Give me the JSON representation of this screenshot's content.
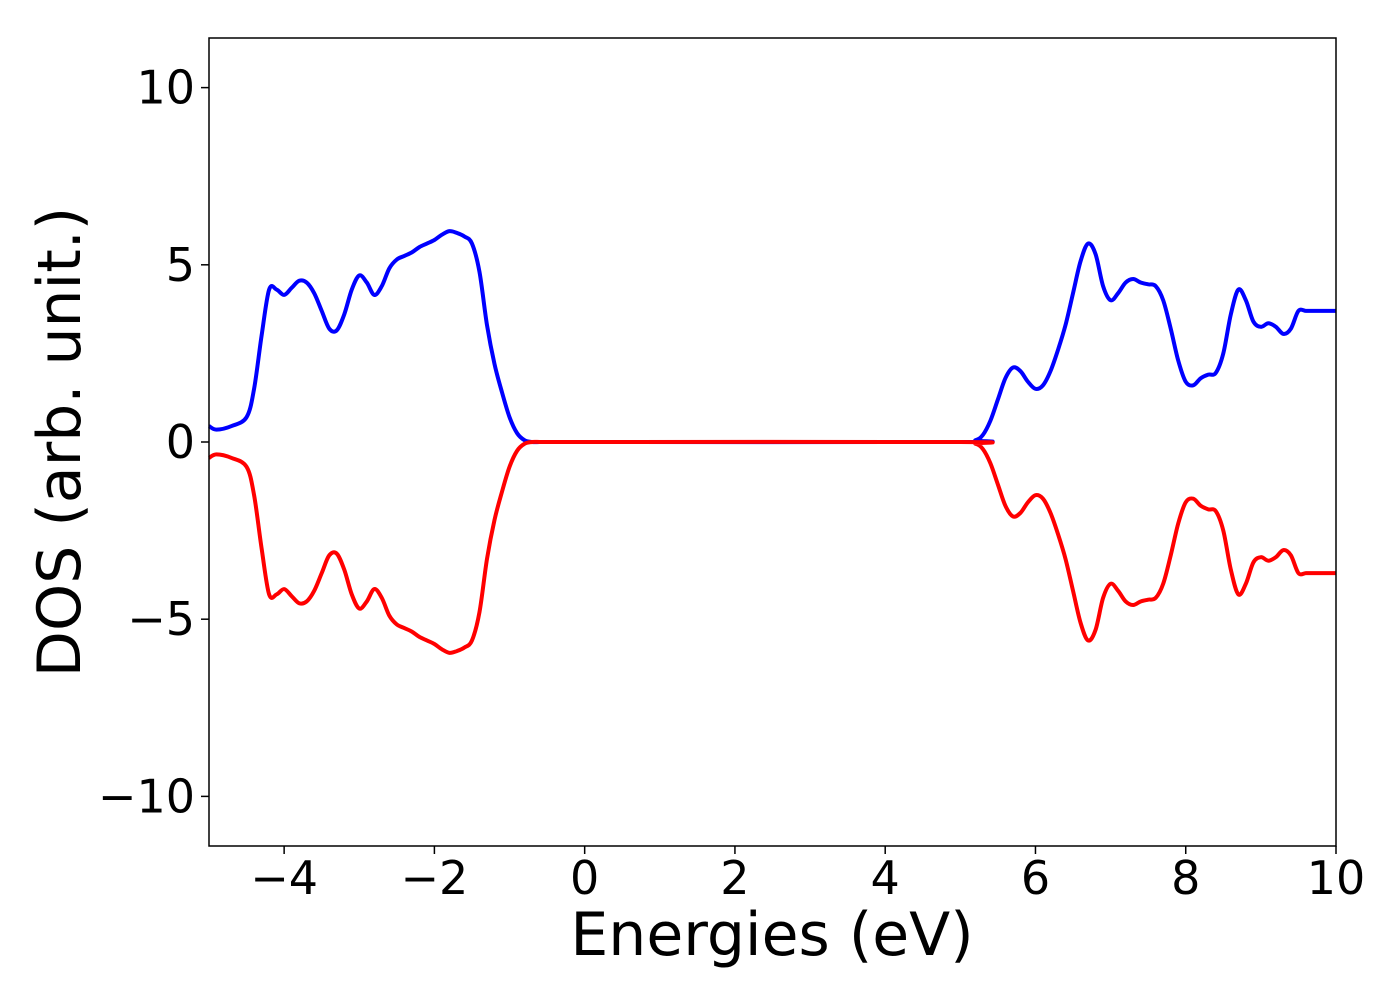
{
  "chart_data": {
    "type": "line",
    "title": "",
    "xlabel": "Energies (eV)",
    "ylabel": "DOS (arb. unit.)",
    "xlim": [
      -5,
      10
    ],
    "ylim": [
      -11.4,
      11.4
    ],
    "grid": false,
    "xticks": [
      -4,
      -2,
      0,
      2,
      4,
      6,
      8,
      10
    ],
    "xtick_labels": [
      "−4",
      "−2",
      "0",
      "2",
      "4",
      "6",
      "8",
      "10"
    ],
    "yticks": [
      10,
      5,
      0,
      -5,
      -10
    ],
    "ytick_labels": [
      "10",
      "5",
      "0",
      "−5",
      "−10"
    ],
    "series": [
      {
        "color": "#0000ff",
        "x": [
          -5.0,
          -4.9,
          -4.7,
          -4.5,
          -4.4,
          -4.3,
          -4.2,
          -4.1,
          -4.0,
          -3.9,
          -3.8,
          -3.7,
          -3.6,
          -3.5,
          -3.4,
          -3.3,
          -3.2,
          -3.1,
          -3.0,
          -2.9,
          -2.8,
          -2.7,
          -2.6,
          -2.5,
          -2.4,
          -2.3,
          -2.2,
          -2.1,
          -2.0,
          -1.9,
          -1.8,
          -1.7,
          -1.6,
          -1.5,
          -1.4,
          -1.3,
          -1.2,
          -1.1,
          -1.0,
          -0.9,
          -0.8,
          -0.7,
          -0.6,
          -0.5,
          0.0,
          5.0,
          5.2,
          5.3,
          5.4,
          5.5,
          5.6,
          5.7,
          5.8,
          5.9,
          6.0,
          6.1,
          6.2,
          6.3,
          6.4,
          6.5,
          6.6,
          6.7,
          6.8,
          6.9,
          7.0,
          7.1,
          7.2,
          7.3,
          7.4,
          7.5,
          7.6,
          7.7,
          7.8,
          7.9,
          8.0,
          8.1,
          8.2,
          8.3,
          8.4,
          8.5,
          8.6,
          8.7,
          8.8,
          8.9,
          9.0,
          9.1,
          9.2,
          9.3,
          9.4,
          9.5,
          9.6,
          9.7,
          9.8,
          9.9,
          10.0
        ],
        "y": [
          0.45,
          0.35,
          0.45,
          0.7,
          1.5,
          3.0,
          4.3,
          4.3,
          4.15,
          4.35,
          4.55,
          4.5,
          4.2,
          3.7,
          3.2,
          3.15,
          3.6,
          4.3,
          4.7,
          4.5,
          4.15,
          4.4,
          4.9,
          5.15,
          5.25,
          5.35,
          5.5,
          5.6,
          5.7,
          5.85,
          5.95,
          5.9,
          5.8,
          5.6,
          4.8,
          3.3,
          2.2,
          1.4,
          0.7,
          0.25,
          0.05,
          0.0,
          0.0,
          0.0,
          0.0,
          0.0,
          0.05,
          0.2,
          0.6,
          1.2,
          1.8,
          2.1,
          2.0,
          1.7,
          1.5,
          1.6,
          2.0,
          2.6,
          3.3,
          4.2,
          5.1,
          5.6,
          5.3,
          4.4,
          4.0,
          4.2,
          4.5,
          4.6,
          4.5,
          4.45,
          4.4,
          4.0,
          3.2,
          2.3,
          1.7,
          1.6,
          1.8,
          1.9,
          1.95,
          2.5,
          3.6,
          4.3,
          4.0,
          3.4,
          3.25,
          3.35,
          3.25,
          3.05,
          3.2,
          3.7,
          3.7,
          3.7,
          3.7,
          3.7,
          3.7
        ]
      },
      {
        "color": "#ff0000",
        "x": [
          -5.0,
          -4.9,
          -4.7,
          -4.5,
          -4.4,
          -4.3,
          -4.2,
          -4.1,
          -4.0,
          -3.9,
          -3.8,
          -3.7,
          -3.6,
          -3.5,
          -3.4,
          -3.3,
          -3.2,
          -3.1,
          -3.0,
          -2.9,
          -2.8,
          -2.7,
          -2.6,
          -2.5,
          -2.4,
          -2.3,
          -2.2,
          -2.1,
          -2.0,
          -1.9,
          -1.8,
          -1.7,
          -1.6,
          -1.5,
          -1.4,
          -1.3,
          -1.2,
          -1.1,
          -1.0,
          -0.9,
          -0.8,
          -0.7,
          -0.6,
          -0.5,
          0.0,
          5.0,
          5.2,
          5.3,
          5.4,
          5.5,
          5.6,
          5.7,
          5.8,
          5.9,
          6.0,
          6.1,
          6.2,
          6.3,
          6.4,
          6.5,
          6.6,
          6.7,
          6.8,
          6.9,
          7.0,
          7.1,
          7.2,
          7.3,
          7.4,
          7.5,
          7.6,
          7.7,
          7.8,
          7.9,
          8.0,
          8.1,
          8.2,
          8.3,
          8.4,
          8.5,
          8.6,
          8.7,
          8.8,
          8.9,
          9.0,
          9.1,
          9.2,
          9.3,
          9.4,
          9.5,
          9.6,
          9.7,
          9.8,
          9.9,
          10.0
        ],
        "y": [
          -0.45,
          -0.35,
          -0.45,
          -0.7,
          -1.5,
          -3.0,
          -4.3,
          -4.3,
          -4.15,
          -4.35,
          -4.55,
          -4.5,
          -4.2,
          -3.7,
          -3.2,
          -3.15,
          -3.6,
          -4.3,
          -4.7,
          -4.5,
          -4.15,
          -4.4,
          -4.9,
          -5.15,
          -5.25,
          -5.35,
          -5.5,
          -5.6,
          -5.7,
          -5.85,
          -5.95,
          -5.9,
          -5.8,
          -5.6,
          -4.8,
          -3.3,
          -2.2,
          -1.4,
          -0.7,
          -0.25,
          -0.05,
          0.0,
          0.0,
          0.0,
          0.0,
          0.0,
          -0.05,
          -0.2,
          -0.6,
          -1.2,
          -1.8,
          -2.1,
          -2.0,
          -1.7,
          -1.5,
          -1.6,
          -2.0,
          -2.6,
          -3.3,
          -4.2,
          -5.1,
          -5.6,
          -5.3,
          -4.4,
          -4.0,
          -4.2,
          -4.5,
          -4.6,
          -4.5,
          -4.45,
          -4.4,
          -4.0,
          -3.2,
          -2.3,
          -1.7,
          -1.6,
          -1.8,
          -1.9,
          -1.95,
          -2.5,
          -3.6,
          -4.3,
          -4.0,
          -3.4,
          -3.25,
          -3.35,
          -3.25,
          -3.05,
          -3.2,
          -3.7,
          -3.7,
          -3.7,
          -3.7,
          -3.7,
          -3.7
        ]
      }
    ]
  }
}
